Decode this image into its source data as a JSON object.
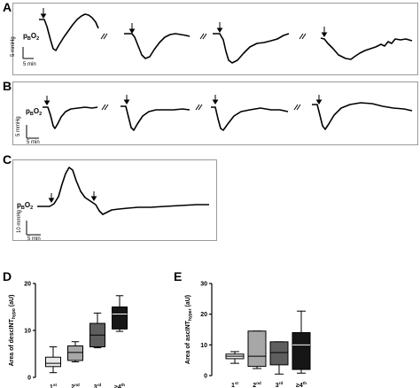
{
  "panels": {
    "A": {
      "letter": "A",
      "label_main": "p",
      "label_sub1": "B",
      "label_o": "O",
      "label_sub2": "2",
      "scale_y": "5 mmHg",
      "scale_x": "5 min"
    },
    "B": {
      "letter": "B",
      "label_main": "p",
      "label_sub1": "B",
      "label_o": "O",
      "label_sub2": "2",
      "scale_y": "5 mmHg",
      "scale_x": "5 min"
    },
    "C": {
      "letter": "C",
      "label_main": "p",
      "label_sub1": "B",
      "label_o": "O",
      "label_sub2": "2",
      "scale_y": "10 mmHg",
      "scale_x": "5 min"
    },
    "D": {
      "letter": "D"
    },
    "E": {
      "letter": "E"
    }
  },
  "chart_data": [
    {
      "type": "box",
      "panel": "D",
      "ylabel_main": "Area of descINT",
      "ylabel_sub": "hypo",
      "ylabel_unit": " (aU)",
      "ylim": [
        0,
        20
      ],
      "yticks": [
        0,
        10,
        20
      ],
      "categories": [
        {
          "base": "1",
          "sup": "st",
          "prefix": ""
        },
        {
          "base": "2",
          "sup": "nd",
          "prefix": ""
        },
        {
          "base": "3",
          "sup": "rd",
          "prefix": ""
        },
        {
          "base": "4",
          "sup": "th",
          "prefix": "≥"
        }
      ],
      "boxes": [
        {
          "min": 1.0,
          "q1": 2.3,
          "median": 3.0,
          "q3": 4.3,
          "max": 6.5,
          "fill": "#e9e9e9"
        },
        {
          "min": 3.3,
          "q1": 3.6,
          "median": 5.3,
          "q3": 6.7,
          "max": 7.6,
          "fill": "#a7a7a7"
        },
        {
          "min": 6.3,
          "q1": 6.5,
          "median": 9.0,
          "q3": 11.5,
          "max": 13.7,
          "fill": "#5e5e5e"
        },
        {
          "min": 9.8,
          "q1": 10.3,
          "median": 13.5,
          "q3": 15.0,
          "max": 17.4,
          "fill": "#161616"
        }
      ]
    },
    {
      "type": "box",
      "panel": "E",
      "ylabel_main": "Area of ascINT",
      "ylabel_sub": "hyper",
      "ylabel_unit": " (aU)",
      "ylim": [
        0,
        30
      ],
      "yticks": [
        0,
        10,
        20,
        30
      ],
      "categories": [
        {
          "base": "1",
          "sup": "st",
          "prefix": ""
        },
        {
          "base": "2",
          "sup": "nd",
          "prefix": ""
        },
        {
          "base": "3",
          "sup": "rd",
          "prefix": ""
        },
        {
          "base": "4",
          "sup": "th",
          "prefix": "≥"
        }
      ],
      "boxes": [
        {
          "min": 4.0,
          "q1": 5.5,
          "median": 6.3,
          "q3": 7.0,
          "max": 7.8,
          "fill": "#e9e9e9"
        },
        {
          "min": 2.3,
          "q1": 3.0,
          "median": 6.3,
          "q3": 14.5,
          "max": 14.5,
          "fill": "#a7a7a7"
        },
        {
          "min": 0.5,
          "q1": 3.5,
          "median": 7.5,
          "q3": 11.0,
          "max": 11.0,
          "fill": "#5e5e5e"
        },
        {
          "min": 0.8,
          "q1": 2.0,
          "median": 10.0,
          "q3": 14.0,
          "max": 21.0,
          "fill": "#161616"
        }
      ]
    }
  ]
}
